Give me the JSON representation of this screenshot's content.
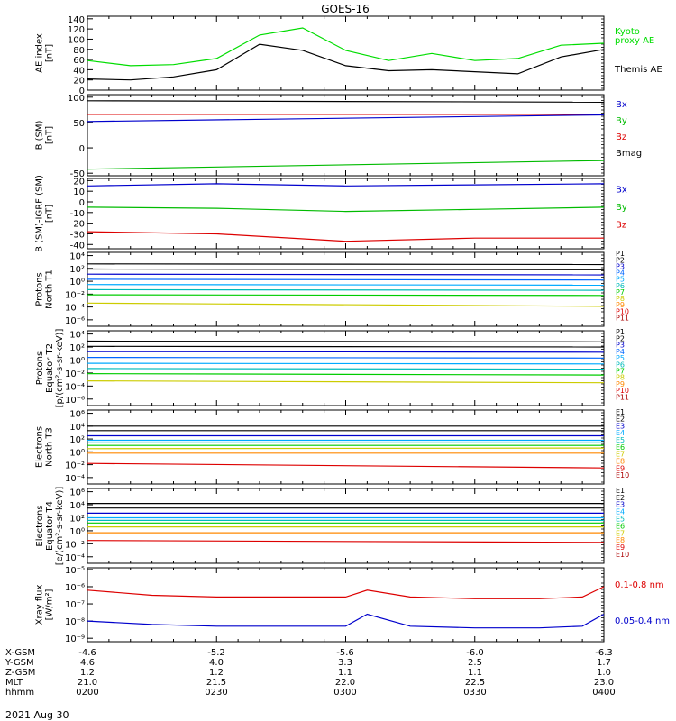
{
  "title": "GOES-16",
  "date": "2021 Aug 30",
  "panels": [
    {
      "id": "ae",
      "ylabel": [
        "AE index",
        "[nT]"
      ],
      "ticks": [
        "140",
        "120",
        "100",
        "80",
        "60",
        "40",
        "20",
        "0"
      ],
      "tick_values": [
        140,
        120,
        100,
        80,
        60,
        40,
        20,
        0
      ],
      "legend": [
        {
          "text": "Kyoto",
          "color": "#00dd00"
        },
        {
          "text": "proxy AE",
          "color": "#00dd00"
        },
        {
          "text": "Themis AE",
          "color": "#000000"
        }
      ]
    },
    {
      "id": "b-sm",
      "ylabel": [
        "B (SM)",
        "[nT]"
      ],
      "ticks": [
        "100",
        "50",
        "0",
        "-50"
      ],
      "tick_values": [
        100,
        50,
        0,
        -50
      ],
      "legend": [
        {
          "text": "Bx",
          "color": "#0000cc"
        },
        {
          "text": "By",
          "color": "#00bb00"
        },
        {
          "text": "Bz",
          "color": "#dd0000"
        },
        {
          "text": "Bmag",
          "color": "#000000"
        }
      ]
    },
    {
      "id": "b-igrf",
      "ylabel": [
        "B (SM)-IGRF (SM)",
        "[nT]"
      ],
      "ticks": [
        "20",
        "10",
        "0",
        "-10",
        "-20",
        "-30",
        "-40"
      ],
      "tick_values": [
        20,
        10,
        0,
        -10,
        -20,
        -30,
        -40
      ],
      "legend": [
        {
          "text": "Bx",
          "color": "#0000cc"
        },
        {
          "text": "By",
          "color": "#00bb00"
        },
        {
          "text": "Bz",
          "color": "#dd0000"
        }
      ]
    },
    {
      "id": "protons-t1",
      "ylabel": [
        "Protons",
        "North T1"
      ],
      "ticks": [
        "10⁴",
        "10²",
        "10⁰",
        "10⁻²",
        "10⁻⁴",
        "10⁻⁶"
      ],
      "tick_values": [
        4,
        2,
        0,
        -2,
        -4,
        -6
      ],
      "legend": [
        {
          "text": "P1",
          "color": "#000000"
        },
        {
          "text": "P2",
          "color": "#000000"
        },
        {
          "text": "P3",
          "color": "#0000cc"
        },
        {
          "text": "P4",
          "color": "#0066ff"
        },
        {
          "text": "P5",
          "color": "#00aaff"
        },
        {
          "text": "P6",
          "color": "#00bbbb"
        },
        {
          "text": "P7",
          "color": "#00cc00"
        },
        {
          "text": "P8",
          "color": "#cccc00"
        },
        {
          "text": "P9",
          "color": "#ff8800"
        },
        {
          "text": "P10",
          "color": "#dd0000"
        },
        {
          "text": "P11",
          "color": "#aa0000"
        }
      ]
    },
    {
      "id": "protons-t2",
      "ylabel": [
        "Protons",
        "Equator T2",
        "[p/(cm²-s-sr-keV)]"
      ],
      "ticks": [
        "10⁴",
        "10²",
        "10⁰",
        "10⁻²",
        "10⁻⁴",
        "10⁻⁶"
      ],
      "tick_values": [
        4,
        2,
        0,
        -2,
        -4,
        -6
      ],
      "legend": [
        {
          "text": "P1",
          "color": "#000000"
        },
        {
          "text": "P2",
          "color": "#000000"
        },
        {
          "text": "P3",
          "color": "#0000cc"
        },
        {
          "text": "P4",
          "color": "#0066ff"
        },
        {
          "text": "P5",
          "color": "#00aaff"
        },
        {
          "text": "P6",
          "color": "#00bbbb"
        },
        {
          "text": "P7",
          "color": "#00cc00"
        },
        {
          "text": "P8",
          "color": "#cccc00"
        },
        {
          "text": "P9",
          "color": "#ff8800"
        },
        {
          "text": "P10",
          "color": "#dd0000"
        },
        {
          "text": "P11",
          "color": "#aa0000"
        }
      ]
    },
    {
      "id": "electrons-t3",
      "ylabel": [
        "Electrons",
        "North T3"
      ],
      "ticks": [
        "10⁶",
        "10⁴",
        "10²",
        "10⁰",
        "10⁻²",
        "10⁻⁴"
      ],
      "tick_values": [
        6,
        4,
        2,
        0,
        -2,
        -4
      ],
      "legend": [
        {
          "text": "E1",
          "color": "#000000"
        },
        {
          "text": "E2",
          "color": "#000000"
        },
        {
          "text": "E3",
          "color": "#0000cc"
        },
        {
          "text": "E4",
          "color": "#00aaff"
        },
        {
          "text": "E5",
          "color": "#00bbbb"
        },
        {
          "text": "E6",
          "color": "#00cc00"
        },
        {
          "text": "E7",
          "color": "#cccc00"
        },
        {
          "text": "E8",
          "color": "#ff8800"
        },
        {
          "text": "E9",
          "color": "#dd0000"
        },
        {
          "text": "E10",
          "color": "#aa0000"
        }
      ]
    },
    {
      "id": "electrons-t4",
      "ylabel": [
        "Electrons",
        "Equator T4",
        "[e/(cm²-s-sr-keV)]"
      ],
      "ticks": [
        "10⁶",
        "10⁴",
        "10²",
        "10⁰",
        "10⁻²",
        "10⁻⁴"
      ],
      "tick_values": [
        6,
        4,
        2,
        0,
        -2,
        -4
      ],
      "legend": [
        {
          "text": "E1",
          "color": "#000000"
        },
        {
          "text": "E2",
          "color": "#000000"
        },
        {
          "text": "E3",
          "color": "#0000cc"
        },
        {
          "text": "E4",
          "color": "#00aaff"
        },
        {
          "text": "E5",
          "color": "#00bbbb"
        },
        {
          "text": "E6",
          "color": "#00cc00"
        },
        {
          "text": "E7",
          "color": "#cccc00"
        },
        {
          "text": "E8",
          "color": "#ff8800"
        },
        {
          "text": "E9",
          "color": "#dd0000"
        },
        {
          "text": "E10",
          "color": "#aa0000"
        }
      ]
    },
    {
      "id": "xray",
      "ylabel": [
        "Xray flux",
        "[W/m²]"
      ],
      "ticks": [
        "10⁻⁵",
        "10⁻⁶",
        "10⁻⁷",
        "10⁻⁸",
        "10⁻⁹"
      ],
      "tick_values": [
        -5,
        -6,
        -7,
        -8,
        -9
      ],
      "legend": [
        {
          "text": "0.1-0.8 nm",
          "color": "#dd0000"
        },
        {
          "text": "0.05-0.4 nm",
          "color": "#0000cc"
        }
      ]
    }
  ],
  "x_rows": [
    {
      "label": "X-GSM",
      "values": [
        "-4.6",
        "-5.2",
        "-5.6",
        "-6.0",
        "-6.3"
      ]
    },
    {
      "label": "Y-GSM",
      "values": [
        "4.6",
        "4.0",
        "3.3",
        "2.5",
        "1.7"
      ]
    },
    {
      "label": "Z-GSM",
      "values": [
        "1.2",
        "1.2",
        "1.1",
        "1.1",
        "1.0"
      ]
    },
    {
      "label": "MLT",
      "values": [
        "21.0",
        "21.5",
        "22.0",
        "22.5",
        "23.0"
      ]
    },
    {
      "label": "hhmm",
      "values": [
        "0200",
        "0230",
        "0300",
        "0330",
        "0400"
      ]
    }
  ],
  "chart_data": [
    {
      "type": "line",
      "panel": "ae",
      "x": [
        "0200",
        "0210",
        "0220",
        "0230",
        "0240",
        "0250",
        "0300",
        "0310",
        "0320",
        "0330",
        "0340",
        "0350",
        "0400"
      ],
      "ylim": [
        0,
        145
      ],
      "series": [
        {
          "name": "Kyoto proxy AE",
          "color": "#00dd00",
          "values": [
            58,
            48,
            50,
            62,
            108,
            122,
            78,
            58,
            72,
            58,
            62,
            88,
            92
          ]
        },
        {
          "name": "Themis AE",
          "color": "#000000",
          "values": [
            22,
            20,
            26,
            40,
            90,
            78,
            48,
            38,
            40,
            36,
            32,
            65,
            80
          ]
        }
      ]
    },
    {
      "type": "line",
      "panel": "b-sm",
      "x": [
        "0200",
        "0400"
      ],
      "ylim": [
        -55,
        105
      ],
      "series": [
        {
          "name": "Bmag",
          "color": "#000000",
          "values": [
            93,
            90
          ]
        },
        {
          "name": "Bz",
          "color": "#dd0000",
          "values": [
            66,
            66
          ]
        },
        {
          "name": "Bx",
          "color": "#0000cc",
          "values": [
            52,
            65
          ]
        },
        {
          "name": "By",
          "color": "#00bb00",
          "values": [
            -42,
            -25
          ]
        }
      ]
    },
    {
      "type": "line",
      "panel": "b-igrf",
      "x": [
        "0200",
        "0230",
        "0300",
        "0330",
        "0400"
      ],
      "ylim": [
        -44,
        22
      ],
      "series": [
        {
          "name": "Bx",
          "color": "#0000cc",
          "values": [
            15,
            17,
            15,
            16,
            17
          ]
        },
        {
          "name": "By",
          "color": "#00bb00",
          "values": [
            -5,
            -6,
            -9,
            -7,
            -5
          ]
        },
        {
          "name": "Bz",
          "color": "#dd0000",
          "values": [
            -28,
            -30,
            -37,
            -34,
            -34
          ]
        }
      ]
    },
    {
      "type": "line",
      "panel": "protons-t1",
      "x": [
        "0200",
        "0400"
      ],
      "ylim": [
        -7,
        4.5
      ],
      "yscale": "log",
      "series": [
        {
          "name": "P1",
          "color": "#000000",
          "values": [
            2.7,
            2.6
          ]
        },
        {
          "name": "P2",
          "color": "#000000",
          "values": [
            1.9,
            1.8
          ]
        },
        {
          "name": "P3",
          "color": "#0000cc",
          "values": [
            1.1,
            1.0
          ]
        },
        {
          "name": "P4",
          "color": "#0066ff",
          "values": [
            0.3,
            0.2
          ]
        },
        {
          "name": "P5",
          "color": "#00aaff",
          "values": [
            -0.5,
            -0.6
          ]
        },
        {
          "name": "P6",
          "color": "#00bbbb",
          "values": [
            -1.3,
            -1.4
          ]
        },
        {
          "name": "P7",
          "color": "#00cc00",
          "values": [
            -2.1,
            -2.2
          ]
        },
        {
          "name": "P8",
          "color": "#cccc00",
          "values": [
            -3.4,
            -3.9
          ]
        }
      ]
    },
    {
      "type": "line",
      "panel": "protons-t2",
      "x": [
        "0200",
        "0400"
      ],
      "ylim": [
        -7,
        4.5
      ],
      "yscale": "log",
      "series": [
        {
          "name": "P1",
          "color": "#000000",
          "values": [
            2.9,
            2.8
          ]
        },
        {
          "name": "P2",
          "color": "#000000",
          "values": [
            2.1,
            2.0
          ]
        },
        {
          "name": "P3",
          "color": "#0000cc",
          "values": [
            1.3,
            1.2
          ]
        },
        {
          "name": "P4",
          "color": "#0066ff",
          "values": [
            0.4,
            0.3
          ]
        },
        {
          "name": "P5",
          "color": "#00aaff",
          "values": [
            -0.5,
            -0.6
          ]
        },
        {
          "name": "P6",
          "color": "#00bbbb",
          "values": [
            -1.3,
            -1.4
          ]
        },
        {
          "name": "P7",
          "color": "#00cc00",
          "values": [
            -2.1,
            -2.3
          ]
        },
        {
          "name": "P8",
          "color": "#cccc00",
          "values": [
            -3.2,
            -3.5
          ]
        }
      ]
    },
    {
      "type": "line",
      "panel": "electrons-t3",
      "x": [
        "0200",
        "0400"
      ],
      "ylim": [
        -5,
        6.5
      ],
      "yscale": "log",
      "series": [
        {
          "name": "E1",
          "color": "#000000",
          "values": [
            4.0,
            4.0
          ]
        },
        {
          "name": "E2",
          "color": "#000000",
          "values": [
            3.3,
            3.3
          ]
        },
        {
          "name": "E3",
          "color": "#0000cc",
          "values": [
            2.5,
            2.5
          ]
        },
        {
          "name": "E4",
          "color": "#00aaff",
          "values": [
            1.8,
            1.8
          ]
        },
        {
          "name": "E5",
          "color": "#00bbbb",
          "values": [
            1.4,
            1.4
          ]
        },
        {
          "name": "E6",
          "color": "#00cc00",
          "values": [
            1.0,
            1.0
          ]
        },
        {
          "name": "E7",
          "color": "#cccc00",
          "values": [
            0.5,
            0.6
          ]
        },
        {
          "name": "E8",
          "color": "#ff8800",
          "values": [
            -0.2,
            -0.2
          ]
        },
        {
          "name": "E9",
          "color": "#dd0000",
          "values": [
            -1.8,
            -2.5
          ]
        }
      ]
    },
    {
      "type": "line",
      "panel": "electrons-t4",
      "x": [
        "0200",
        "0400"
      ],
      "ylim": [
        -5,
        6.5
      ],
      "yscale": "log",
      "series": [
        {
          "name": "E1",
          "color": "#000000",
          "values": [
            4.2,
            4.2
          ]
        },
        {
          "name": "E2",
          "color": "#000000",
          "values": [
            3.5,
            3.5
          ]
        },
        {
          "name": "E3",
          "color": "#0000cc",
          "values": [
            2.7,
            2.7
          ]
        },
        {
          "name": "E4",
          "color": "#00aaff",
          "values": [
            2.0,
            2.0
          ]
        },
        {
          "name": "E5",
          "color": "#00bbbb",
          "values": [
            1.6,
            1.6
          ]
        },
        {
          "name": "E6",
          "color": "#00cc00",
          "values": [
            1.2,
            1.2
          ]
        },
        {
          "name": "E7",
          "color": "#cccc00",
          "values": [
            0.6,
            0.6
          ]
        },
        {
          "name": "E8",
          "color": "#ff8800",
          "values": [
            -0.3,
            -0.3
          ]
        },
        {
          "name": "E9",
          "color": "#dd0000",
          "values": [
            -1.5,
            -1.8
          ]
        }
      ]
    },
    {
      "type": "line",
      "panel": "xray",
      "x": [
        "0200",
        "0215",
        "0230",
        "0245",
        "0300",
        "0305",
        "0315",
        "0330",
        "0345",
        "0355",
        "0400"
      ],
      "ylim": [
        -9.2,
        -4.9
      ],
      "yscale": "log",
      "series": [
        {
          "name": "0.1-0.8 nm",
          "color": "#dd0000",
          "values": [
            -6.2,
            -6.5,
            -6.6,
            -6.6,
            -6.6,
            -6.2,
            -6.6,
            -6.7,
            -6.7,
            -6.6,
            -6.0
          ]
        },
        {
          "name": "0.05-0.4 nm",
          "color": "#0000cc",
          "values": [
            -8.0,
            -8.2,
            -8.3,
            -8.3,
            -8.3,
            -7.6,
            -8.3,
            -8.4,
            -8.4,
            -8.3,
            -7.6
          ]
        }
      ]
    }
  ]
}
